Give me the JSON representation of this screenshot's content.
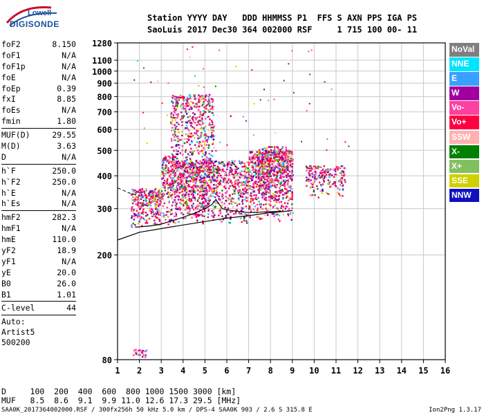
{
  "logo": {
    "top": "Lowell",
    "main": "DIGISONDE"
  },
  "header": {
    "line1": "Station YYYY DAY   DDD HHMMSS P1  FFS S AXN PPS IGA PS",
    "line2": "SaoLuis 2017 Dec30 364 002000 RSF     1 715 100 00- 11"
  },
  "params": {
    "group1": [
      {
        "name": "foF2",
        "value": "8.150"
      },
      {
        "name": "foF1",
        "value": "N/A"
      },
      {
        "name": "foF1p",
        "value": "N/A"
      },
      {
        "name": "foE",
        "value": "N/A"
      },
      {
        "name": "foEp",
        "value": "0.39"
      },
      {
        "name": "fxI",
        "value": "8.85"
      },
      {
        "name": "foEs",
        "value": "N/A"
      },
      {
        "name": "fmin",
        "value": "1.80"
      }
    ],
    "group2": [
      {
        "name": "MUF(D)",
        "value": "29.55"
      },
      {
        "name": "M(D)",
        "value": "3.63"
      },
      {
        "name": "D",
        "value": "N/A"
      }
    ],
    "group3": [
      {
        "name": "h`F",
        "value": "250.0"
      },
      {
        "name": "h`F2",
        "value": "250.0"
      },
      {
        "name": "h`E",
        "value": "N/A"
      },
      {
        "name": "h`Es",
        "value": "N/A"
      }
    ],
    "group4": [
      {
        "name": "hmF2",
        "value": "282.3"
      },
      {
        "name": "hmF1",
        "value": "N/A"
      },
      {
        "name": "hmE",
        "value": "110.0"
      },
      {
        "name": "yF2",
        "value": "18.9"
      },
      {
        "name": "yF1",
        "value": "N/A"
      },
      {
        "name": "yE",
        "value": "20.0"
      },
      {
        "name": "B0",
        "value": "26.0"
      },
      {
        "name": "B1",
        "value": "1.01"
      }
    ],
    "clevel": {
      "name": "C-level",
      "value": "44"
    },
    "auto": [
      "Auto:",
      "Artist5",
      "500200"
    ]
  },
  "legend": [
    {
      "label": "NoVal",
      "color": "#7f7f7f"
    },
    {
      "label": "NNE",
      "color": "#00e5ff"
    },
    {
      "label": "E",
      "color": "#3aa0ff"
    },
    {
      "label": "W",
      "color": "#a000a0"
    },
    {
      "label": "Vo-",
      "color": "#ff40a0"
    },
    {
      "label": "Vo+",
      "color": "#ff0040"
    },
    {
      "label": "SSW",
      "color": "#ffb0b0"
    },
    {
      "label": "X-",
      "color": "#008000"
    },
    {
      "label": "X+",
      "color": "#80c060"
    },
    {
      "label": "SSE",
      "color": "#d0d000"
    },
    {
      "label": "NNW",
      "color": "#1010c0"
    }
  ],
  "dtable": {
    "line1": "D     100  200  400  600  800 1000 1500 3000 [km]",
    "line2": "MUF   8.5  8.6  9.1  9.9 11.0 12.6 17.3 29.5 [MHz]"
  },
  "footer": "SAA0K_2017364002000.RSF / 300fx256h 50 kHz 5.0 km / DPS-4 SAA0K 903 / 2.6 S 315.8 E",
  "version": "Ion2Png 1.3.17",
  "chart_data": {
    "type": "scatter",
    "title": "",
    "xlabel": "",
    "ylabel": "",
    "x_ticks": [
      1,
      2,
      3,
      4,
      5,
      6,
      7,
      8,
      9,
      10,
      11,
      12,
      13,
      14,
      15,
      16
    ],
    "y_tick_labels": [
      80,
      200,
      300,
      400,
      500,
      600,
      700,
      800,
      900,
      1000,
      1100,
      1280
    ],
    "y_tick_heights": [
      80,
      200,
      300,
      400,
      500,
      600,
      700,
      800,
      900,
      1000,
      1100,
      1280
    ],
    "xlim": [
      1,
      16
    ],
    "ylim": [
      80,
      1280
    ],
    "y_scale": "log",
    "grid": true,
    "legend_position": "right",
    "profile_curve": {
      "x": [
        1.0,
        2.0,
        3.0,
        4.0,
        5.0,
        6.0,
        7.0,
        8.0,
        8.5,
        9.0
      ],
      "y": [
        228,
        244,
        252,
        260,
        268,
        276,
        282,
        290,
        292,
        295
      ]
    },
    "trace_line": {
      "x": [
        1.8,
        2.5,
        3.0,
        3.5,
        4.0,
        4.5,
        5.0,
        5.3,
        5.5,
        5.8,
        6.2,
        7.0,
        8.0,
        8.5
      ],
      "y": [
        255,
        258,
        262,
        270,
        278,
        288,
        300,
        310,
        325,
        300,
        295,
        290,
        292,
        293
      ]
    },
    "dashed_line": {
      "x": [
        1.0,
        1.5,
        2.0
      ],
      "y": [
        360,
        345,
        335
      ]
    },
    "echo_clusters": [
      {
        "x": [
          1.6,
          3.0
        ],
        "y": [
          255,
          360
        ],
        "density": 0.7
      },
      {
        "x": [
          3.0,
          3.6
        ],
        "y": [
          260,
          480
        ],
        "density": 0.6
      },
      {
        "x": [
          3.4,
          5.4
        ],
        "y": [
          260,
          820
        ],
        "density": 0.35
      },
      {
        "x": [
          3.6,
          4.8
        ],
        "y": [
          270,
          460
        ],
        "density": 0.6
      },
      {
        "x": [
          4.8,
          7.0
        ],
        "y": [
          260,
          460
        ],
        "density": 0.55
      },
      {
        "x": [
          7.0,
          9.0
        ],
        "y": [
          270,
          500
        ],
        "density": 0.65
      },
      {
        "x": [
          7.4,
          8.8
        ],
        "y": [
          320,
          520
        ],
        "density": 0.5
      },
      {
        "x": [
          9.6,
          11.4
        ],
        "y": [
          330,
          440
        ],
        "density": 0.45
      },
      {
        "x": [
          1.7,
          2.3
        ],
        "y": [
          82,
          88
        ],
        "density": 0.8
      }
    ]
  }
}
